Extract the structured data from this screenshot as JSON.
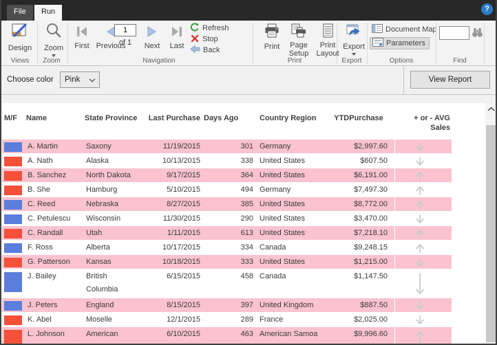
{
  "window": {
    "tabs": [
      {
        "label": "File"
      },
      {
        "label": "Run"
      }
    ],
    "help_glyph": "?"
  },
  "ribbon": {
    "views": {
      "group_label": "Views",
      "design": "Design"
    },
    "zoom": {
      "group_label": "Zoom",
      "zoom": "Zoom"
    },
    "navigation": {
      "group_label": "Navigation",
      "first": "First",
      "previous": "Previous",
      "page_value": "1",
      "of_total": "of 1",
      "next": "Next",
      "last": "Last",
      "refresh": "Refresh",
      "stop": "Stop",
      "back": "Back"
    },
    "print": {
      "group_label": "Print",
      "print": "Print",
      "page_setup": "Page Setup",
      "print_layout": "Print Layout"
    },
    "export": {
      "group_label": "Export",
      "export": "Export"
    },
    "options": {
      "group_label": "Options",
      "document_map": "Document Map",
      "parameters": "Parameters"
    },
    "find": {
      "group_label": "Find",
      "query_value": ""
    }
  },
  "parameter_bar": {
    "choose_color_label": "Choose color",
    "color_value": "Pink",
    "view_report": "View Report"
  },
  "report": {
    "columns": [
      {
        "id": "mf",
        "label": "M/F"
      },
      {
        "id": "name",
        "label": "Name"
      },
      {
        "id": "state",
        "label": "State Province"
      },
      {
        "id": "last_purchase",
        "label": "Last Purchase"
      },
      {
        "id": "days_ago",
        "label": "Days Ago"
      },
      {
        "id": "country",
        "label": "Country Region"
      },
      {
        "id": "ytd",
        "label": "YTDPurchase"
      },
      {
        "id": "trend",
        "label": "+ or - AVG Sales"
      }
    ],
    "rows": [
      {
        "gender_color": "blue",
        "name": "A. Martin",
        "state": "Saxony",
        "last_purchase": "11/19/2015",
        "days_ago": "301",
        "country": "Germany",
        "ytd": "$2,997.60",
        "trend": "down",
        "highlighted": true,
        "tall": false
      },
      {
        "gender_color": "red",
        "name": "A. Nath",
        "state": "Alaska",
        "last_purchase": "10/13/2015",
        "days_ago": "338",
        "country": "United States",
        "ytd": "$607.50",
        "trend": "down",
        "highlighted": false,
        "tall": false
      },
      {
        "gender_color": "red",
        "name": "B. Sanchez",
        "state": "North Dakota",
        "last_purchase": "9/17/2015",
        "days_ago": "364",
        "country": "United States",
        "ytd": "$6,191.00",
        "trend": "up",
        "highlighted": true,
        "tall": false
      },
      {
        "gender_color": "red",
        "name": "B. She",
        "state": "Hamburg",
        "last_purchase": "5/10/2015",
        "days_ago": "494",
        "country": "Germany",
        "ytd": "$7,497.30",
        "trend": "up",
        "highlighted": false,
        "tall": false
      },
      {
        "gender_color": "blue",
        "name": "C. Reed",
        "state": "Nebraska",
        "last_purchase": "8/27/2015",
        "days_ago": "385",
        "country": "United States",
        "ytd": "$8,772.00",
        "trend": "up",
        "highlighted": true,
        "tall": false
      },
      {
        "gender_color": "blue",
        "name": "C. Petulescu",
        "state": "Wisconsin",
        "last_purchase": "11/30/2015",
        "days_ago": "290",
        "country": "United States",
        "ytd": "$3,470.00",
        "trend": "down",
        "highlighted": false,
        "tall": false
      },
      {
        "gender_color": "red",
        "name": "C. Randall",
        "state": "Utah",
        "last_purchase": "1/11/2015",
        "days_ago": "613",
        "country": "United States",
        "ytd": "$7,218.10",
        "trend": "up",
        "highlighted": true,
        "tall": false
      },
      {
        "gender_color": "blue",
        "name": "F. Ross",
        "state": "Alberta",
        "last_purchase": "10/17/2015",
        "days_ago": "334",
        "country": "Canada",
        "ytd": "$9,248.15",
        "trend": "up",
        "highlighted": false,
        "tall": false
      },
      {
        "gender_color": "red",
        "name": "G. Patterson",
        "state": "Kansas",
        "last_purchase": "10/18/2015",
        "days_ago": "333",
        "country": "United States",
        "ytd": "$1,215.00",
        "trend": "down",
        "highlighted": true,
        "tall": false
      },
      {
        "gender_color": "blue",
        "name": "J. Bailey",
        "state": "British Columbia",
        "last_purchase": "6/15/2015",
        "days_ago": "458",
        "country": "Canada",
        "ytd": "$1,147.50",
        "trend": "down",
        "highlighted": false,
        "tall": true
      },
      {
        "gender_color": "blue",
        "name": "J. Peters",
        "state": "England",
        "last_purchase": "8/15/2015",
        "days_ago": "397",
        "country": "United Kingdom",
        "ytd": "$887.50",
        "trend": "down",
        "highlighted": true,
        "tall": false
      },
      {
        "gender_color": "red",
        "name": "K. Abel",
        "state": "Moselle",
        "last_purchase": "12/1/2015",
        "days_ago": "289",
        "country": "France",
        "ytd": "$2,025.00",
        "trend": "down",
        "highlighted": false,
        "tall": false
      },
      {
        "gender_color": "red",
        "name": "L. Johnson",
        "state": "American Samoa",
        "last_purchase": "6/10/2015",
        "days_ago": "463",
        "country": "American Samoa",
        "ytd": "$9,996.60",
        "trend": "up",
        "highlighted": true,
        "tall": true
      }
    ]
  },
  "colors": {
    "highlight_row": "#fac3cf",
    "male_swatch": "#5b7edc",
    "female_swatch": "#f4503a",
    "trend_arrow": "#c6cbcd",
    "accent_help": "#2c7bc4"
  }
}
